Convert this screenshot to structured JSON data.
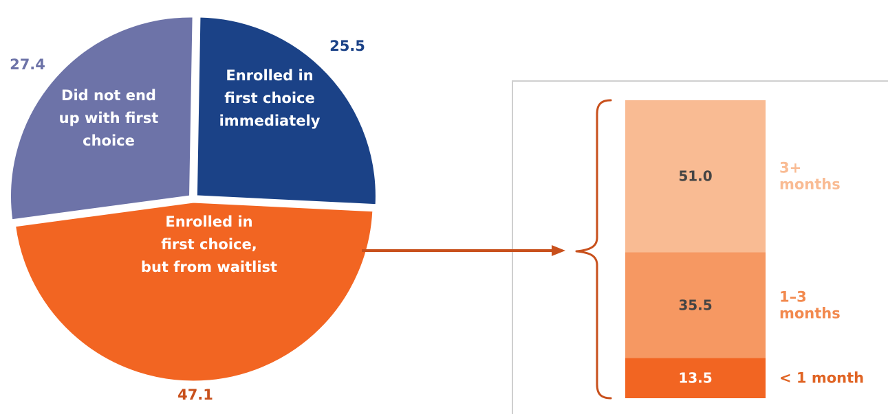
{
  "chart_data": [
    {
      "type": "pie",
      "slices": [
        {
          "label": "Enrolled in first choice immediately",
          "label_lines": [
            "Enrolled  in",
            "first choice",
            "immediately"
          ],
          "value": 25.5,
          "value_label": "25.5",
          "color": "#1b4287",
          "value_color": "#1b4287"
        },
        {
          "label": "Enrolled in first choice, but from waitlist",
          "label_lines": [
            "Enrolled in",
            "first choice,",
            "but from waitlist"
          ],
          "value": 47.1,
          "value_label": "47.1",
          "color": "#f26522",
          "value_color": "#c8501c"
        },
        {
          "label": "Did not end up with first choice",
          "label_lines": [
            "Did not end",
            "up with first",
            "choice"
          ],
          "value": 27.4,
          "value_label": "27.4",
          "color": "#6d73a8",
          "value_color": "#6d73a8"
        }
      ]
    },
    {
      "type": "bar",
      "stacked": true,
      "segments": [
        {
          "category": "3+ months",
          "label_lines": [
            "3+",
            "months"
          ],
          "value": 51.0,
          "value_label": "51.0",
          "color": "#f9bb93",
          "label_color": "#f9bb93"
        },
        {
          "category": "1–3 months",
          "label_lines": [
            "1–3",
            "months"
          ],
          "value": 35.5,
          "value_label": "35.5",
          "color": "#f69862",
          "label_color": "#f2894e"
        },
        {
          "category": "< 1 month",
          "label_lines": [
            "< 1 month"
          ],
          "value": 13.5,
          "value_label": "13.5",
          "color": "#f26522",
          "label_color": "#e06424"
        }
      ]
    }
  ],
  "colors": {
    "separator": "#ffffff",
    "arrow": "#c8501c",
    "bracket": "#c8501c",
    "panel_border": "#cfcfcf",
    "bar_value_text": "#444444",
    "bar_value_text_dark": "#ffffff",
    "pie_label_text": "#ffffff"
  }
}
